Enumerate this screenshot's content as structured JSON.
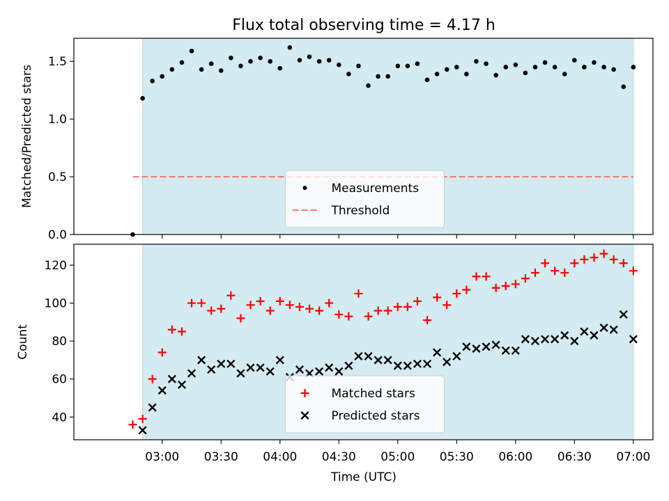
{
  "figure": {
    "title": "Flux total observing time = 4.17 h",
    "xlabel": "Time (UTC)"
  },
  "chart_data": [
    {
      "type": "scatter",
      "panel": "top",
      "ylabel": "Matched/Predicted stars",
      "xlim": [
        "02:15",
        "07:10"
      ],
      "ylim": [
        0,
        1.7
      ],
      "yticks": [
        0.0,
        0.5,
        1.0,
        1.5
      ],
      "ytick_labels": [
        "0.0",
        "0.5",
        "1.0",
        "1.5"
      ],
      "xticks": [
        "03:00",
        "03:30",
        "04:00",
        "04:30",
        "05:00",
        "05:30",
        "06:00",
        "06:30",
        "07:00"
      ],
      "observing_span": [
        "02:50",
        "07:00"
      ],
      "grid": false,
      "legend_position": "lower center",
      "colors": {
        "span": "#d4ebf1",
        "measurements": "#000000",
        "threshold": "#f27b7b"
      },
      "threshold": {
        "name": "Threshold",
        "value": 0.5,
        "x_range": [
          "02:45",
          "07:00"
        ]
      },
      "series": [
        {
          "name": "Measurements",
          "x": [
            "02:45",
            "02:50",
            "02:55",
            "03:00",
            "03:05",
            "03:10",
            "03:15",
            "03:20",
            "03:25",
            "03:30",
            "03:35",
            "03:40",
            "03:45",
            "03:50",
            "03:55",
            "04:00",
            "04:05",
            "04:10",
            "04:15",
            "04:20",
            "04:25",
            "04:30",
            "04:35",
            "04:40",
            "04:45",
            "04:50",
            "04:55",
            "05:00",
            "05:05",
            "05:10",
            "05:15",
            "05:20",
            "05:25",
            "05:30",
            "05:35",
            "05:40",
            "05:45",
            "05:50",
            "05:55",
            "06:00",
            "06:05",
            "06:10",
            "06:15",
            "06:20",
            "06:25",
            "06:30",
            "06:35",
            "06:40",
            "06:45",
            "06:50",
            "06:55",
            "07:00"
          ],
          "y": [
            0.0,
            1.18,
            1.33,
            1.37,
            1.43,
            1.49,
            1.59,
            1.43,
            1.48,
            1.42,
            1.53,
            1.46,
            1.5,
            1.53,
            1.5,
            1.44,
            1.62,
            1.51,
            1.54,
            1.5,
            1.51,
            1.47,
            1.39,
            1.46,
            1.29,
            1.37,
            1.37,
            1.46,
            1.46,
            1.48,
            1.34,
            1.39,
            1.43,
            1.45,
            1.39,
            1.5,
            1.48,
            1.38,
            1.45,
            1.47,
            1.4,
            1.45,
            1.49,
            1.45,
            1.39,
            1.51,
            1.45,
            1.49,
            1.45,
            1.43,
            1.28,
            1.45
          ]
        }
      ]
    },
    {
      "type": "scatter",
      "panel": "bottom",
      "ylabel": "Count",
      "xlim": [
        "02:15",
        "07:10"
      ],
      "ylim": [
        28,
        131
      ],
      "yticks": [
        40,
        60,
        80,
        100,
        120
      ],
      "ytick_labels": [
        "40",
        "60",
        "80",
        "100",
        "120"
      ],
      "xticks": [
        "03:00",
        "03:30",
        "04:00",
        "04:30",
        "05:00",
        "05:30",
        "06:00",
        "06:30",
        "07:00"
      ],
      "observing_span": [
        "02:50",
        "07:00"
      ],
      "grid": false,
      "legend_position": "lower center",
      "colors": {
        "span": "#d4ebf1",
        "matched": "#ff0000",
        "predicted": "#000000"
      },
      "series": [
        {
          "name": "Matched stars",
          "marker": "plus",
          "x": [
            "02:45",
            "02:50",
            "02:55",
            "03:00",
            "03:05",
            "03:10",
            "03:15",
            "03:20",
            "03:25",
            "03:30",
            "03:35",
            "03:40",
            "03:45",
            "03:50",
            "03:55",
            "04:00",
            "04:05",
            "04:10",
            "04:15",
            "04:20",
            "04:25",
            "04:30",
            "04:35",
            "04:40",
            "04:45",
            "04:50",
            "04:55",
            "05:00",
            "05:05",
            "05:10",
            "05:15",
            "05:20",
            "05:25",
            "05:30",
            "05:35",
            "05:40",
            "05:45",
            "05:50",
            "05:55",
            "06:00",
            "06:05",
            "06:10",
            "06:15",
            "06:20",
            "06:25",
            "06:30",
            "06:35",
            "06:40",
            "06:45",
            "06:50",
            "06:55",
            "07:00"
          ],
          "y": [
            36,
            39,
            60,
            74,
            86,
            85,
            100,
            100,
            96,
            97,
            104,
            92,
            99,
            101,
            96,
            101,
            99,
            98,
            97,
            96,
            100,
            94,
            93,
            105,
            93,
            96,
            96,
            98,
            98,
            101,
            91,
            103,
            99,
            105,
            107,
            114,
            114,
            108,
            109,
            110,
            113,
            116,
            121,
            117,
            116,
            121,
            123,
            124,
            126,
            123,
            121,
            117
          ]
        },
        {
          "name": "Predicted stars",
          "marker": "x",
          "x": [
            "02:50",
            "02:55",
            "03:00",
            "03:05",
            "03:10",
            "03:15",
            "03:20",
            "03:25",
            "03:30",
            "03:35",
            "03:40",
            "03:45",
            "03:50",
            "03:55",
            "04:00",
            "04:05",
            "04:10",
            "04:15",
            "04:20",
            "04:25",
            "04:30",
            "04:35",
            "04:40",
            "04:45",
            "04:50",
            "04:55",
            "05:00",
            "05:05",
            "05:10",
            "05:15",
            "05:20",
            "05:25",
            "05:30",
            "05:35",
            "05:40",
            "05:45",
            "05:50",
            "05:55",
            "06:00",
            "06:05",
            "06:10",
            "06:15",
            "06:20",
            "06:25",
            "06:30",
            "06:35",
            "06:40",
            "06:45",
            "06:50",
            "06:55",
            "07:00"
          ],
          "y": [
            33,
            45,
            54,
            60,
            57,
            63,
            70,
            65,
            68,
            68,
            63,
            66,
            66,
            64,
            70,
            61,
            65,
            63,
            64,
            66,
            64,
            67,
            72,
            72,
            70,
            70,
            67,
            67,
            68,
            68,
            74,
            69,
            72,
            77,
            76,
            77,
            78,
            75,
            75,
            81,
            80,
            81,
            81,
            83,
            80,
            85,
            83,
            87,
            86,
            94,
            81
          ]
        }
      ]
    }
  ]
}
